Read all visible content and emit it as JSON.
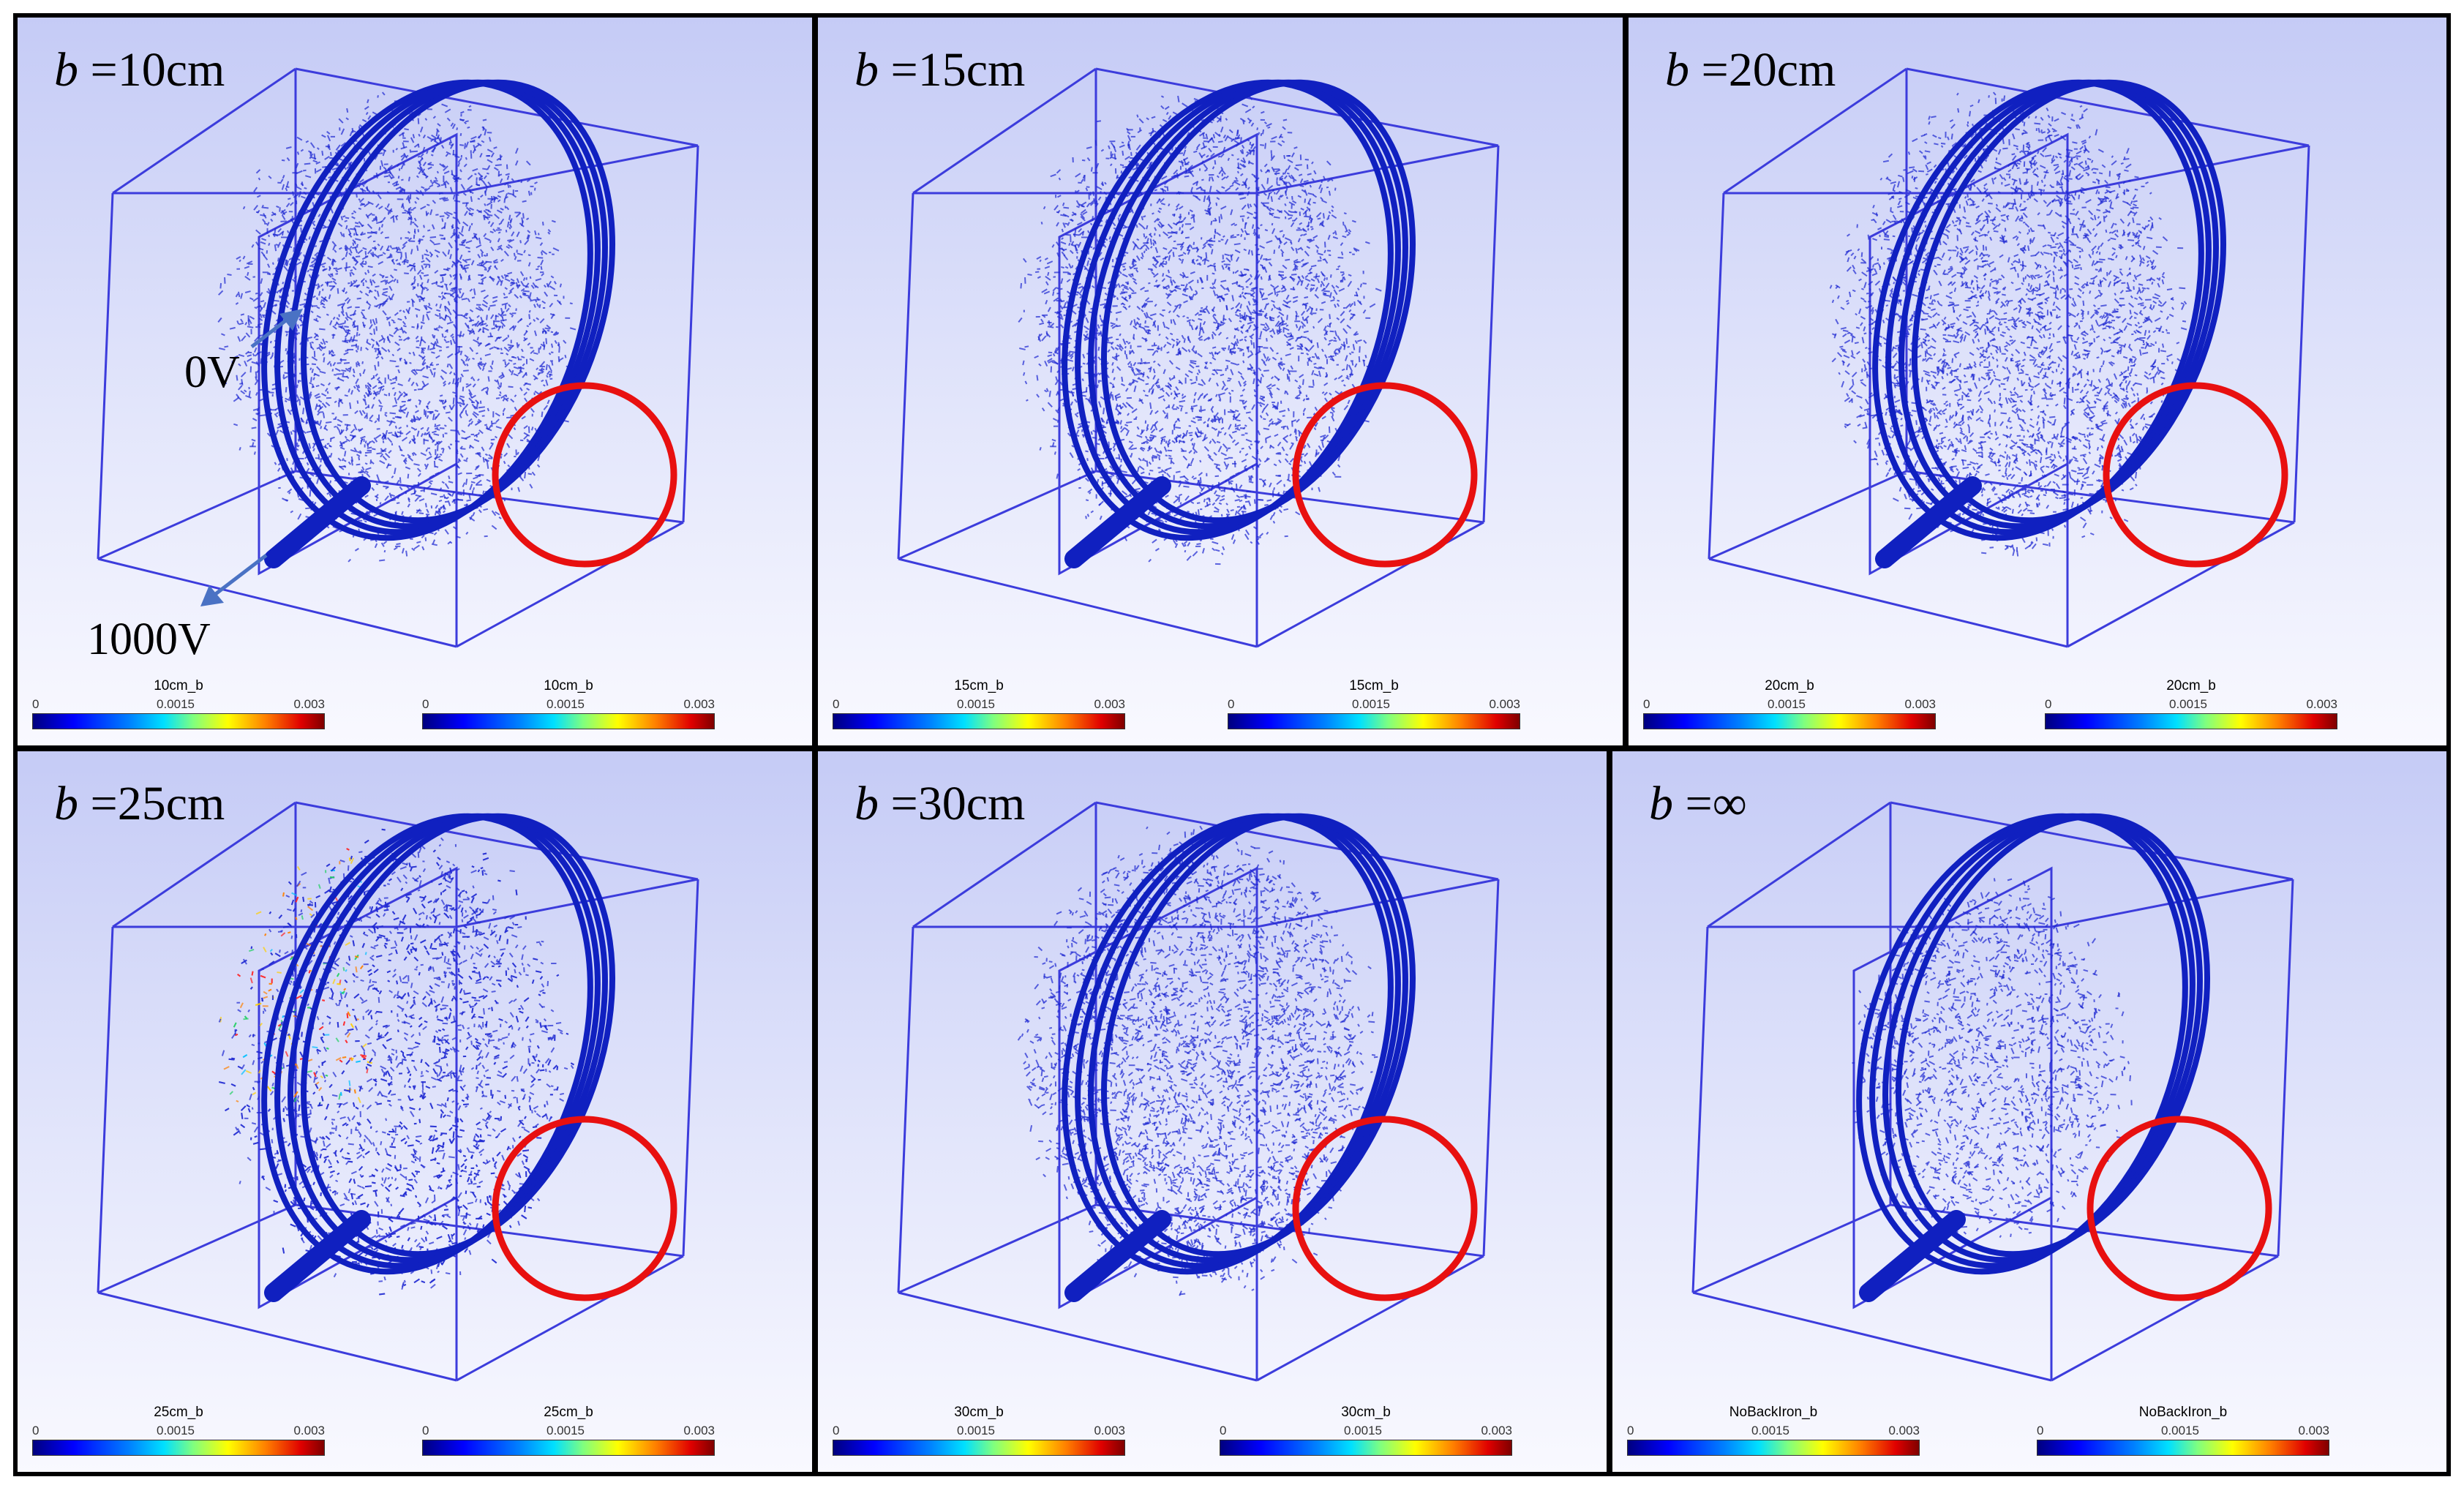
{
  "panels": [
    {
      "b_symbol": "b",
      "b_value": "=10cm",
      "colorbar_left_title": "10cm_b",
      "colorbar_right_title": "10cm_b"
    },
    {
      "b_symbol": "b",
      "b_value": "=15cm",
      "colorbar_left_title": "15cm_b",
      "colorbar_right_title": "15cm_b"
    },
    {
      "b_symbol": "b",
      "b_value": "=20cm",
      "colorbar_left_title": "20cm_b",
      "colorbar_right_title": "20cm_b"
    },
    {
      "b_symbol": "b",
      "b_value": "=25cm",
      "colorbar_left_title": "25cm_b",
      "colorbar_right_title": "25cm_b"
    },
    {
      "b_symbol": "b",
      "b_value": "=30cm",
      "colorbar_left_title": "30cm_b",
      "colorbar_right_title": "30cm_b"
    },
    {
      "b_symbol": "b",
      "b_value": "=∞",
      "colorbar_left_title": "NoBackIron_b",
      "colorbar_right_title": "NoBackIron_b"
    }
  ],
  "voltage_labels": {
    "top": "0V",
    "bottom": "1000V"
  },
  "colorbar_ticks": {
    "min": "0",
    "mid": "0.0015",
    "max": "0.003"
  },
  "colors": {
    "box": "#3c3cdc",
    "particles": "#1e28d2",
    "highlight_circle": "#e81010",
    "arrow": "#4a72c4"
  }
}
